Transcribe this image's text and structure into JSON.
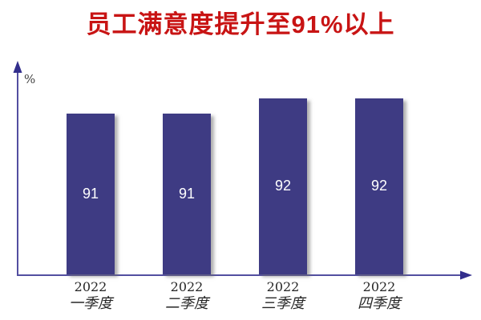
{
  "page": {
    "background": "#FFFFFF"
  },
  "chart_data": {
    "type": "bar",
    "title": "员工满意度提升至91%以上",
    "categories": [
      "2022 一季度",
      "2022 二季度",
      "2022 三季度",
      "2022 四季度"
    ],
    "categories_two_line": [
      {
        "line1": "2022",
        "line2": "一季度"
      },
      {
        "line1": "2022",
        "line2": "二季度"
      },
      {
        "line1": "2022",
        "line2": "三季度"
      },
      {
        "line1": "2022",
        "line2": "四季度"
      }
    ],
    "values": [
      91,
      91,
      92,
      92
    ],
    "data_labels": [
      "91",
      "91",
      "92",
      "92"
    ],
    "xlabel": "",
    "ylabel": "%",
    "ylim": [
      80.4,
      94.4
    ],
    "grid": false,
    "legend": false,
    "data_label_position": "center",
    "colors": {
      "bar": "#3E3B83",
      "title": "#C81414",
      "axis_line": "#534FA0",
      "axis_arrow": "#322E8C",
      "value_label": "#FFFFFF",
      "category_text": "#262626",
      "ylabel_text": "#404040"
    }
  }
}
